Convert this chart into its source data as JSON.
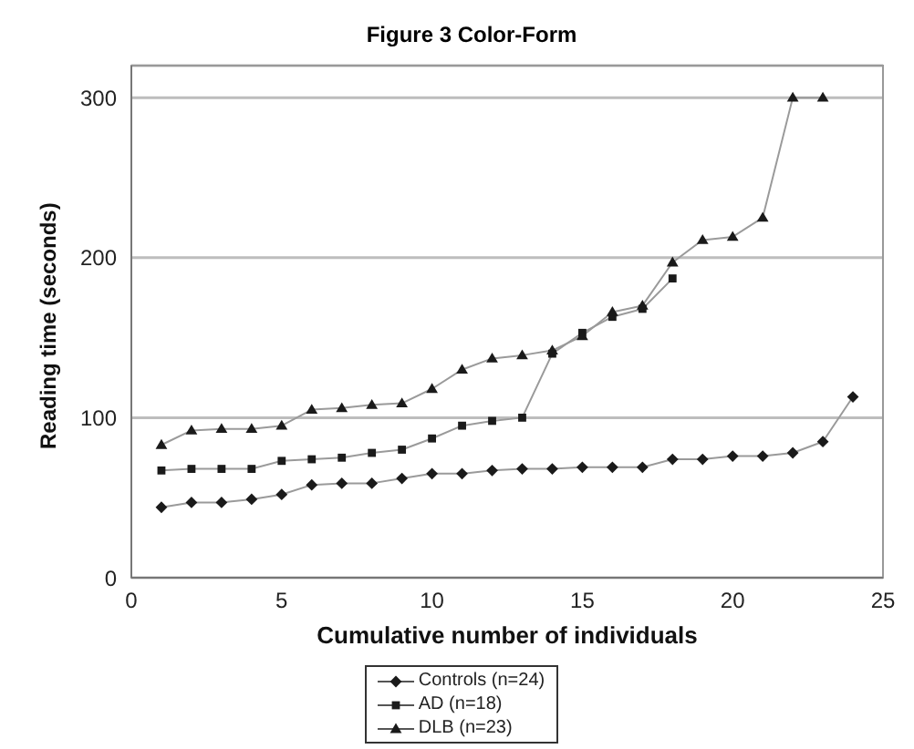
{
  "chart_data": {
    "type": "line",
    "title": "Figure 3 Color-Form",
    "xlabel": "Cumulative number of individuals",
    "ylabel": "Reading time (seconds)",
    "xlim": [
      0,
      25
    ],
    "xticks": [
      0,
      5,
      10,
      15,
      20,
      25
    ],
    "ylim": [
      0,
      320
    ],
    "yticks": [
      0,
      100,
      200,
      300
    ],
    "grid": "y",
    "legend": "bottom",
    "series": [
      {
        "name": "Controls (n=24)",
        "color": "#1a1a1a",
        "marker": "diamond",
        "x": [
          1,
          2,
          3,
          4,
          5,
          6,
          7,
          8,
          9,
          10,
          11,
          12,
          13,
          14,
          15,
          16,
          17,
          18,
          19,
          20,
          21,
          22,
          23,
          24
        ],
        "values": [
          44,
          47,
          47,
          49,
          52,
          58,
          59,
          59,
          62,
          65,
          65,
          67,
          68,
          68,
          69,
          69,
          69,
          74,
          74,
          76,
          76,
          78,
          85,
          113
        ]
      },
      {
        "name": "AD (n=18)",
        "color": "#1a1a1a",
        "marker": "square",
        "x": [
          1,
          2,
          3,
          4,
          5,
          6,
          7,
          8,
          9,
          10,
          11,
          12,
          13,
          14,
          15,
          16,
          17,
          18
        ],
        "values": [
          67,
          68,
          68,
          68,
          73,
          74,
          75,
          78,
          80,
          87,
          95,
          98,
          100,
          140,
          153,
          163,
          168,
          187
        ]
      },
      {
        "name": "DLB (n=23)",
        "color": "#1a1a1a",
        "marker": "triangle",
        "x": [
          1,
          2,
          3,
          4,
          5,
          6,
          7,
          8,
          9,
          10,
          11,
          12,
          13,
          14,
          15,
          16,
          17,
          18,
          19,
          20,
          21,
          22,
          23
        ],
        "values": [
          83,
          92,
          93,
          93,
          95,
          105,
          106,
          108,
          109,
          118,
          130,
          137,
          139,
          142,
          151,
          166,
          170,
          197,
          211,
          213,
          225,
          300,
          300
        ]
      }
    ]
  }
}
